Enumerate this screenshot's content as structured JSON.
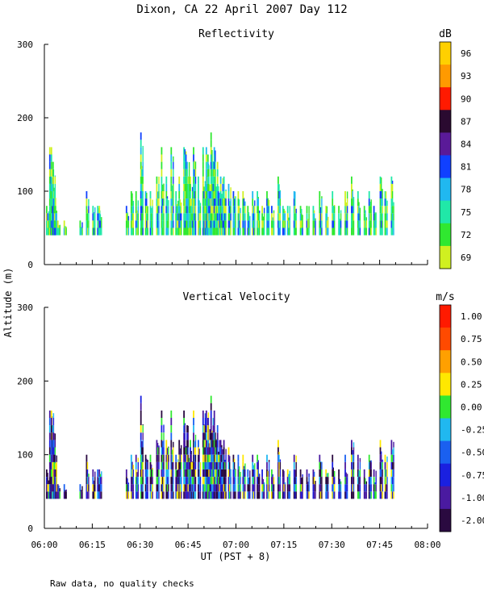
{
  "figure": {
    "title": "Dixon, CA 22 April 2007  Day 112",
    "footnote": "Raw data, no quality checks",
    "shared_ylabel": "Altitude (m)",
    "shared_xlabel": "UT  (PST + 8)"
  },
  "chart_data": [
    {
      "type": "heatmap",
      "title": "Reflectivity",
      "ylabel": "Altitude (m)",
      "xlabel": "UT  (PST + 8)",
      "xlim": [
        0,
        120
      ],
      "ylim": [
        0,
        300
      ],
      "x_tick_labels": [
        "06:00",
        "06:15",
        "06:30",
        "06:45",
        "07:00",
        "07:15",
        "07:30",
        "07:45",
        "08:00"
      ],
      "x_ticks_minutes": [
        0,
        15,
        30,
        45,
        60,
        75,
        90,
        105,
        120
      ],
      "y_tick_labels": [
        "0",
        "100",
        "200",
        "300"
      ],
      "y_ticks": [
        0,
        100,
        200,
        300
      ],
      "colorbar": {
        "unit": "dB",
        "labels": [
          "96",
          "93",
          "90",
          "87",
          "84",
          "81",
          "78",
          "75",
          "72",
          "69"
        ],
        "colors": [
          "#ffd000",
          "#ff9a00",
          "#ff1a00",
          "#2a0a30",
          "#5a1a98",
          "#1040ff",
          "#20b8f0",
          "#20e8a8",
          "#30e830",
          "#d0f020"
        ]
      },
      "cell_colors": [
        "#d0f020",
        "#30e830",
        "#30e830",
        "#20e8a8",
        "#20e8a8",
        "#20b8f0",
        "#1040ff"
      ],
      "columns": [
        [
          0.5,
          40,
          80
        ],
        [
          1.5,
          40,
          160
        ],
        [
          2.0,
          40,
          160
        ],
        [
          2.5,
          40,
          140
        ],
        [
          3.0,
          40,
          100
        ],
        [
          4.0,
          40,
          60
        ],
        [
          6.0,
          40,
          60
        ],
        [
          11.0,
          40,
          60
        ],
        [
          13.0,
          40,
          100
        ],
        [
          15.0,
          40,
          80
        ],
        [
          16.5,
          40,
          80
        ],
        [
          17.0,
          40,
          80
        ],
        [
          25.5,
          40,
          80
        ],
        [
          27.0,
          40,
          100
        ],
        [
          28.5,
          40,
          100
        ],
        [
          30.0,
          40,
          180
        ],
        [
          31.5,
          40,
          100
        ],
        [
          33.0,
          40,
          100
        ],
        [
          35.0,
          40,
          120
        ],
        [
          36.5,
          40,
          160
        ],
        [
          38.0,
          40,
          120
        ],
        [
          39.5,
          40,
          160
        ],
        [
          41.0,
          40,
          100
        ],
        [
          42.0,
          40,
          120
        ],
        [
          43.5,
          40,
          160
        ],
        [
          44.5,
          40,
          140
        ],
        [
          45.5,
          40,
          120
        ],
        [
          46.5,
          40,
          160
        ],
        [
          48.0,
          40,
          120
        ],
        [
          49.5,
          40,
          160
        ],
        [
          50.5,
          40,
          160
        ],
        [
          51.0,
          40,
          150
        ],
        [
          52.0,
          40,
          180
        ],
        [
          53.0,
          40,
          160
        ],
        [
          54.0,
          40,
          140
        ],
        [
          55.0,
          40,
          120
        ],
        [
          56.0,
          40,
          120
        ],
        [
          57.5,
          40,
          110
        ],
        [
          59.0,
          40,
          100
        ],
        [
          60.5,
          40,
          100
        ],
        [
          62.0,
          40,
          100
        ],
        [
          63.5,
          40,
          80
        ],
        [
          65.0,
          40,
          100
        ],
        [
          66.5,
          40,
          100
        ],
        [
          68.0,
          40,
          80
        ],
        [
          69.5,
          40,
          100
        ],
        [
          71.0,
          40,
          80
        ],
        [
          73.0,
          40,
          120
        ],
        [
          74.5,
          40,
          80
        ],
        [
          76.0,
          40,
          80
        ],
        [
          78.0,
          40,
          100
        ],
        [
          80.0,
          40,
          80
        ],
        [
          82.0,
          40,
          80
        ],
        [
          84.0,
          40,
          80
        ],
        [
          86.0,
          40,
          100
        ],
        [
          88.0,
          40,
          80
        ],
        [
          90.0,
          40,
          100
        ],
        [
          92.0,
          40,
          80
        ],
        [
          94.0,
          40,
          100
        ],
        [
          96.0,
          40,
          120
        ],
        [
          98.0,
          40,
          100
        ],
        [
          100.0,
          40,
          80
        ],
        [
          101.5,
          40,
          100
        ],
        [
          103.0,
          40,
          80
        ],
        [
          105.0,
          40,
          120
        ],
        [
          106.5,
          40,
          100
        ],
        [
          108.5,
          40,
          120
        ]
      ]
    },
    {
      "type": "heatmap",
      "title": "Vertical Velocity",
      "ylabel": "Altitude (m)",
      "xlabel": "UT  (PST + 8)",
      "xlim": [
        0,
        120
      ],
      "ylim": [
        0,
        300
      ],
      "x_tick_labels": [
        "06:00",
        "06:15",
        "06:30",
        "06:45",
        "07:00",
        "07:15",
        "07:30",
        "07:45",
        "08:00"
      ],
      "x_ticks_minutes": [
        0,
        15,
        30,
        45,
        60,
        75,
        90,
        105,
        120
      ],
      "y_tick_labels": [
        "0",
        "100",
        "200",
        "300"
      ],
      "y_ticks": [
        0,
        100,
        200,
        300
      ],
      "colorbar": {
        "unit": "m/s",
        "labels": [
          "1.00",
          "0.75",
          "0.50",
          "0.25",
          "0.00",
          "-0.25",
          "-0.50",
          "-0.75",
          "-1.00",
          "-2.00"
        ],
        "colors": [
          "#ff1a00",
          "#ff4a00",
          "#ffa000",
          "#ffe800",
          "#30e830",
          "#20b8f0",
          "#1a60f0",
          "#1a20e0",
          "#4a1aa0",
          "#2a0a40"
        ]
      },
      "cell_colors": [
        "#2a0a40",
        "#2a0a40",
        "#4a1aa0",
        "#4a1aa0",
        "#1a20e0",
        "#1a60f0",
        "#20b8f0",
        "#30e830",
        "#ffe800"
      ],
      "columns": [
        [
          0.5,
          40,
          80
        ],
        [
          1.5,
          40,
          160
        ],
        [
          2.0,
          40,
          160
        ],
        [
          2.5,
          40,
          140
        ],
        [
          3.0,
          40,
          100
        ],
        [
          4.0,
          40,
          60
        ],
        [
          6.0,
          40,
          60
        ],
        [
          11.0,
          40,
          60
        ],
        [
          13.0,
          40,
          100
        ],
        [
          15.0,
          40,
          80
        ],
        [
          16.5,
          40,
          80
        ],
        [
          17.0,
          40,
          80
        ],
        [
          25.5,
          40,
          80
        ],
        [
          27.0,
          40,
          100
        ],
        [
          28.5,
          40,
          100
        ],
        [
          30.0,
          40,
          180
        ],
        [
          31.5,
          40,
          100
        ],
        [
          33.0,
          40,
          100
        ],
        [
          35.0,
          40,
          120
        ],
        [
          36.5,
          40,
          160
        ],
        [
          38.0,
          40,
          120
        ],
        [
          39.5,
          40,
          160
        ],
        [
          41.0,
          40,
          100
        ],
        [
          42.0,
          40,
          120
        ],
        [
          43.5,
          40,
          160
        ],
        [
          44.5,
          40,
          140
        ],
        [
          45.5,
          40,
          120
        ],
        [
          46.5,
          40,
          160
        ],
        [
          48.0,
          40,
          120
        ],
        [
          49.5,
          40,
          160
        ],
        [
          50.5,
          40,
          160
        ],
        [
          51.0,
          40,
          150
        ],
        [
          52.0,
          40,
          180
        ],
        [
          53.0,
          40,
          160
        ],
        [
          54.0,
          40,
          140
        ],
        [
          55.0,
          40,
          120
        ],
        [
          56.0,
          40,
          120
        ],
        [
          57.5,
          40,
          110
        ],
        [
          59.0,
          40,
          100
        ],
        [
          60.5,
          40,
          100
        ],
        [
          62.0,
          40,
          100
        ],
        [
          63.5,
          40,
          80
        ],
        [
          65.0,
          40,
          100
        ],
        [
          66.5,
          40,
          100
        ],
        [
          68.0,
          40,
          80
        ],
        [
          69.5,
          40,
          100
        ],
        [
          71.0,
          40,
          80
        ],
        [
          73.0,
          40,
          120
        ],
        [
          74.5,
          40,
          80
        ],
        [
          76.0,
          40,
          80
        ],
        [
          78.0,
          40,
          100
        ],
        [
          80.0,
          40,
          80
        ],
        [
          82.0,
          40,
          80
        ],
        [
          84.0,
          40,
          80
        ],
        [
          86.0,
          40,
          100
        ],
        [
          88.0,
          40,
          80
        ],
        [
          90.0,
          40,
          100
        ],
        [
          92.0,
          40,
          80
        ],
        [
          94.0,
          40,
          100
        ],
        [
          96.0,
          40,
          120
        ],
        [
          98.0,
          40,
          100
        ],
        [
          100.0,
          40,
          80
        ],
        [
          101.5,
          40,
          100
        ],
        [
          103.0,
          40,
          80
        ],
        [
          105.0,
          40,
          120
        ],
        [
          106.5,
          40,
          100
        ],
        [
          108.5,
          40,
          120
        ]
      ]
    }
  ]
}
